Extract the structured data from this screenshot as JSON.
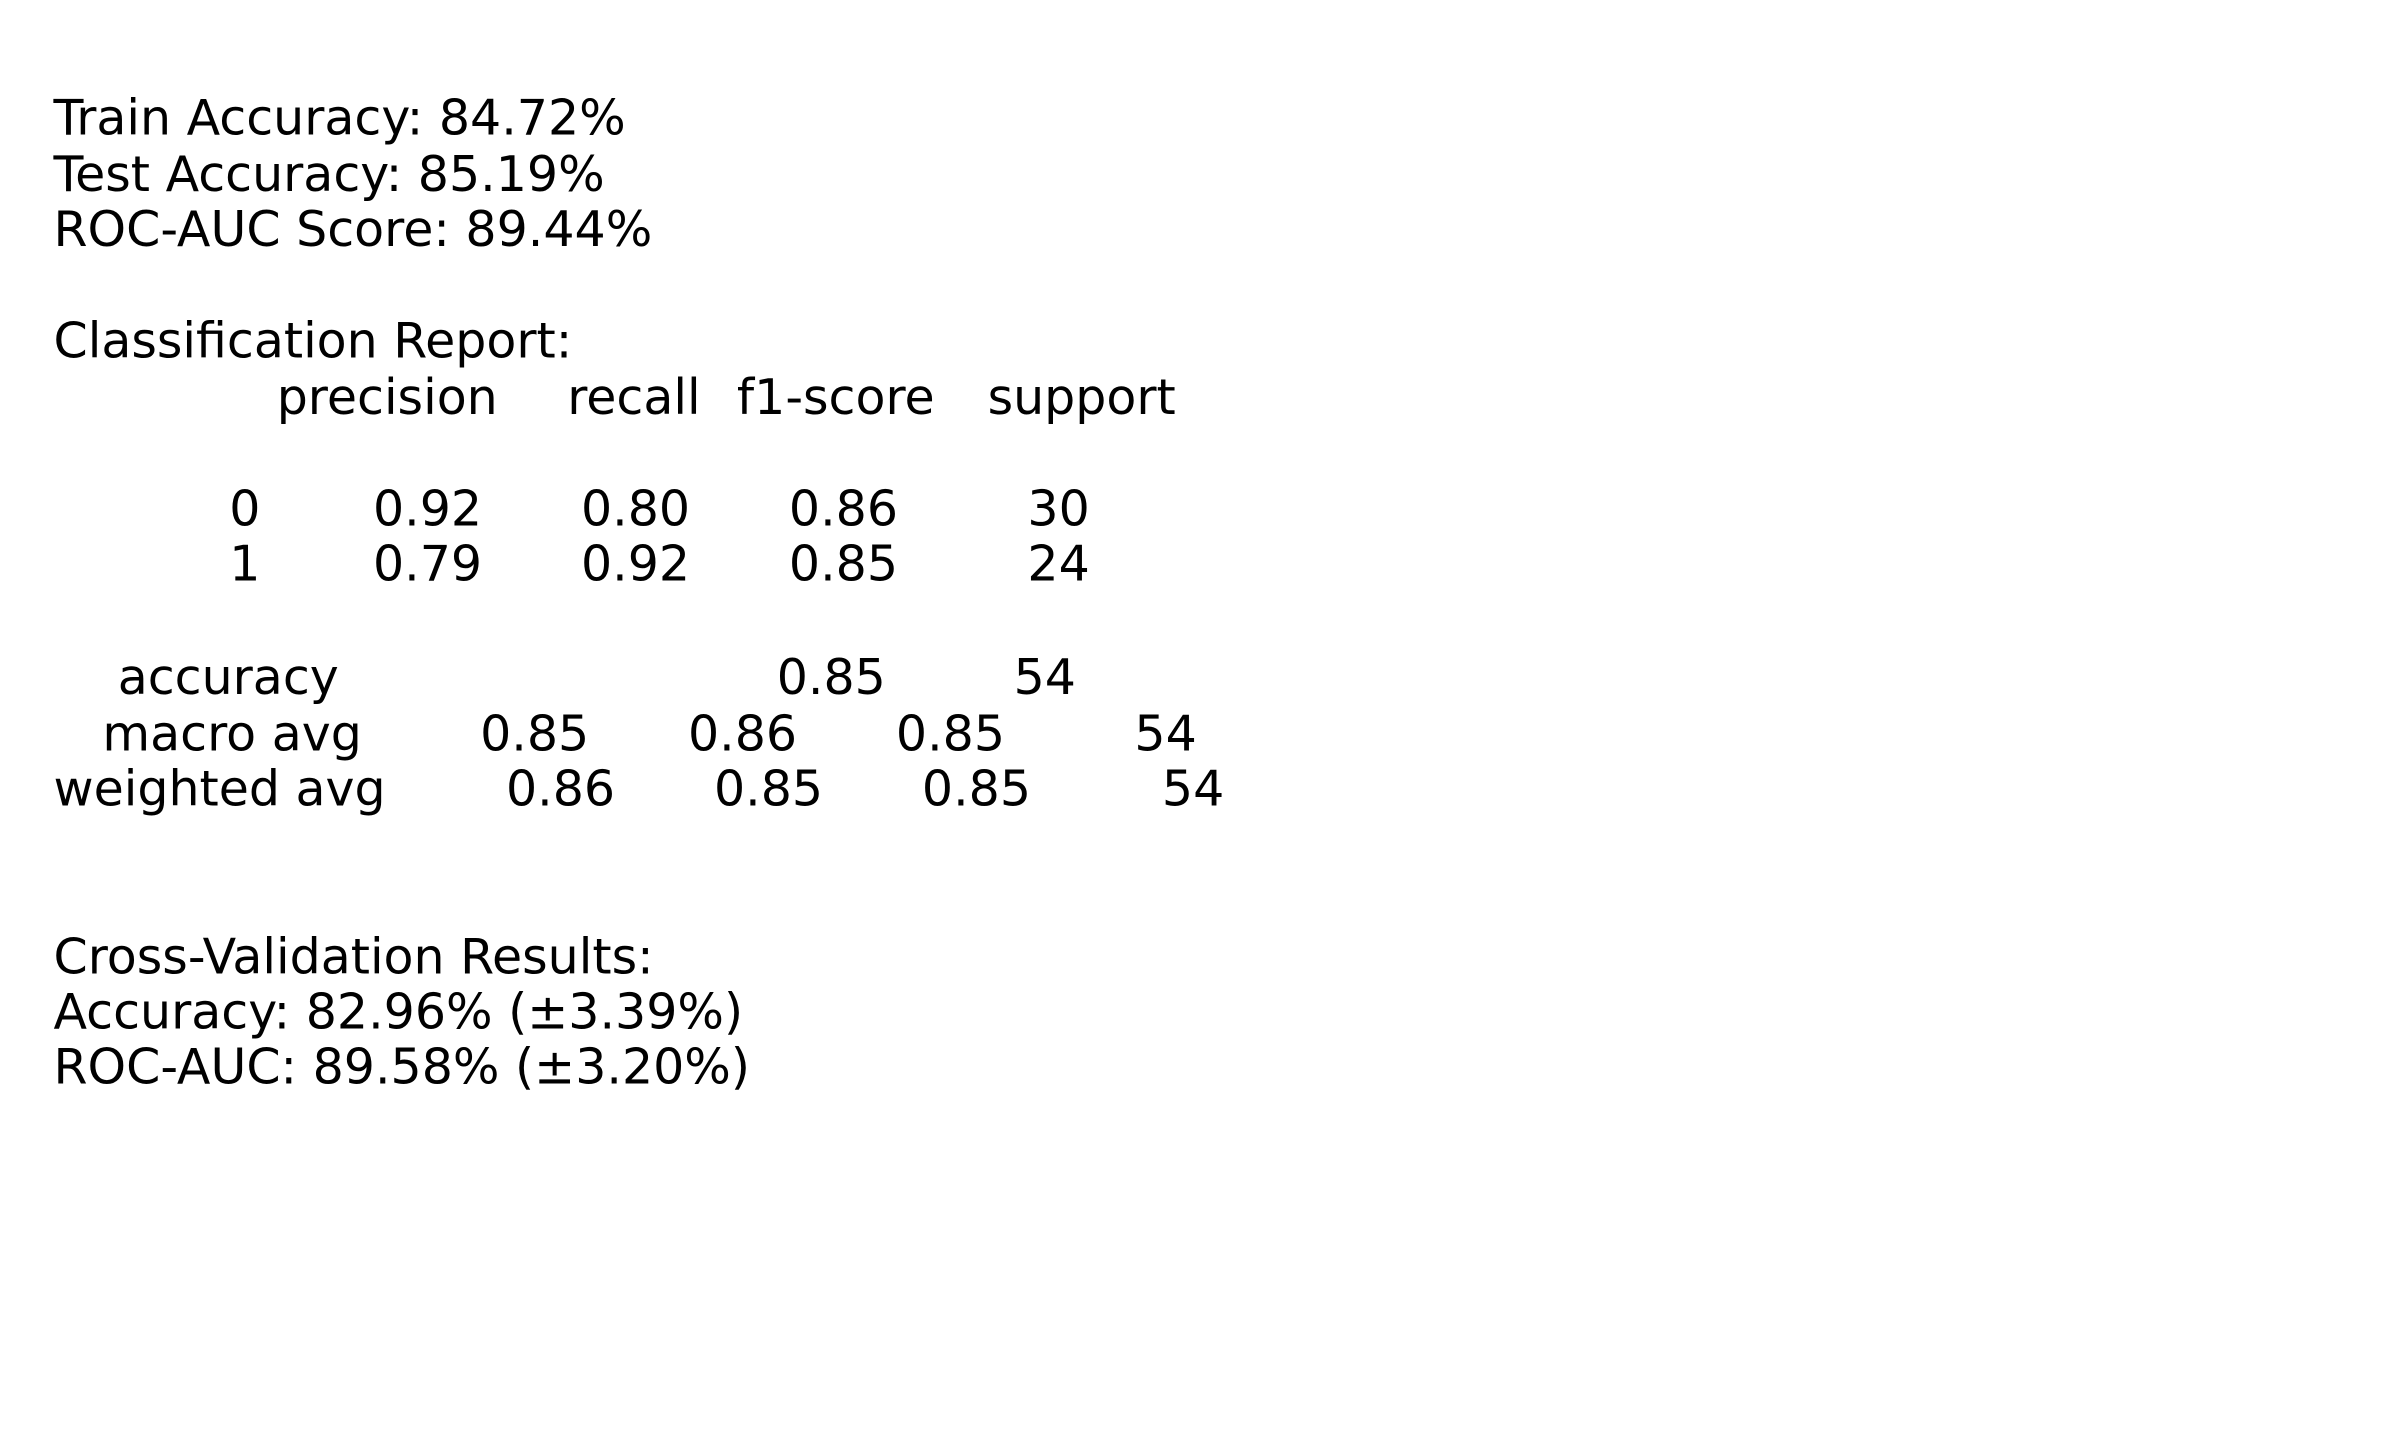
{
  "summary": [
    "Train Accuracy: 84.72%",
    "Test Accuracy: 85.19%",
    "ROC-AUC Score: 89.44%"
  ],
  "classification_report": {
    "title": "Classification Report:",
    "columns": [
      "precision",
      "recall",
      "f1-score",
      "support"
    ],
    "rows": [
      {
        "label": "0",
        "cells": [
          "0.92",
          "0.80",
          "0.86",
          "30"
        ]
      },
      {
        "label": "1",
        "cells": [
          "0.79",
          "0.92",
          "0.85",
          "24"
        ]
      },
      {
        "label": "accuracy",
        "cells": [
          "0.85",
          "54"
        ]
      },
      {
        "label": "macro avg",
        "cells": [
          "0.85",
          "0.86",
          "0.85",
          "54"
        ]
      },
      {
        "label": "weighted avg",
        "cells": [
          "0.86",
          "0.85",
          "0.85",
          "54"
        ]
      }
    ]
  },
  "cross_validation": {
    "title": "Cross-Validation Results:",
    "lines": [
      "Accuracy: 82.96% (±3.39%)",
      "ROC-AUC: 89.58% (±3.20%)"
    ]
  }
}
